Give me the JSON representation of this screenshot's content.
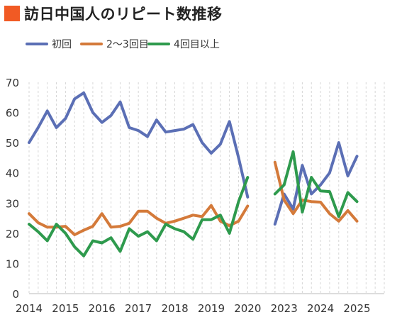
{
  "title": "訪日中国人のリピート数推移",
  "colors": {
    "title_mark": "#f15a24",
    "series": [
      "#5b6fb5",
      "#d47a3a",
      "#2e9a4d"
    ]
  },
  "chart_data": {
    "type": "line",
    "title": "訪日中国人のリピート数推移",
    "ylim": [
      0,
      70
    ],
    "yticks": [
      0,
      10,
      20,
      30,
      40,
      50,
      60,
      70
    ],
    "xticks": [
      "2014",
      "2015",
      "2016",
      "2017",
      "2018",
      "2019",
      "2020",
      "2023",
      "2024",
      "2025"
    ],
    "xlim": [
      0,
      39
    ],
    "xtick_positions": [
      0,
      4,
      8,
      12,
      16,
      20,
      24,
      28,
      32,
      36
    ],
    "grid": "vertical",
    "legend_position": "top-left",
    "series": [
      {
        "name": "初回",
        "segments": [
          {
            "x": [
              0,
              1,
              2,
              3,
              4,
              5,
              6,
              7,
              8,
              9,
              10,
              11,
              12,
              13,
              14,
              15,
              16,
              17,
              18,
              19,
              20,
              21,
              22,
              23,
              24
            ],
            "y": [
              50,
              55,
              60.5,
              55,
              58,
              64.5,
              66.5,
              60,
              56.7,
              59,
              63.5,
              55,
              54,
              52,
              57.5,
              53.5,
              54,
              54.5,
              56,
              50,
              46.5,
              49.5,
              57,
              45,
              32
            ]
          },
          {
            "x": [
              27,
              28,
              29,
              30,
              31,
              32,
              33,
              34,
              35,
              36,
              37
            ],
            "y": [
              23,
              33,
              28,
              42.5,
              33,
              36,
              40,
              50,
              39,
              45.5,
              null
            ]
          }
        ]
      },
      {
        "name": "2～3回目",
        "segments": [
          {
            "x": [
              0,
              1,
              2,
              3,
              4,
              5,
              6,
              7,
              8,
              9,
              10,
              11,
              12,
              13,
              14,
              15,
              16,
              17,
              18,
              19,
              20,
              21,
              22,
              23,
              24
            ],
            "y": [
              26.5,
              23.5,
              22,
              22,
              22.3,
              19.5,
              21,
              22.3,
              26.5,
              22,
              22.3,
              23.3,
              27.3,
              27.3,
              25,
              23.3,
              24,
              25,
              26,
              25.5,
              29.2,
              24,
              22.5,
              24,
              29
            ]
          },
          {
            "x": [
              27,
              28,
              29,
              30,
              31,
              32,
              33,
              34,
              35,
              36
            ],
            "y": [
              43.5,
              31,
              26.5,
              31,
              30.5,
              30.3,
              26.5,
              24,
              27.5,
              24
            ]
          }
        ]
      },
      {
        "name": "4回目以上",
        "segments": [
          {
            "x": [
              0,
              1,
              2,
              3,
              4,
              5,
              6,
              7,
              8,
              9,
              10,
              11,
              12,
              13,
              14,
              15,
              16,
              17,
              18,
              19,
              20,
              21,
              22,
              23,
              24
            ],
            "y": [
              23,
              20.5,
              17.5,
              23,
              20,
              15.5,
              12.5,
              17.5,
              16.8,
              18.5,
              14,
              21.5,
              19,
              20.5,
              17.5,
              23,
              21.5,
              20.5,
              18,
              24.5,
              24.5,
              26,
              20,
              30.5,
              38.5
            ]
          },
          {
            "x": [
              27,
              28,
              29,
              30,
              31,
              32,
              33,
              34,
              35,
              36
            ],
            "y": [
              33,
              36,
              47,
              27,
              38.5,
              34,
              33.8,
              25.5,
              33.5,
              30.5
            ]
          }
        ]
      }
    ]
  }
}
